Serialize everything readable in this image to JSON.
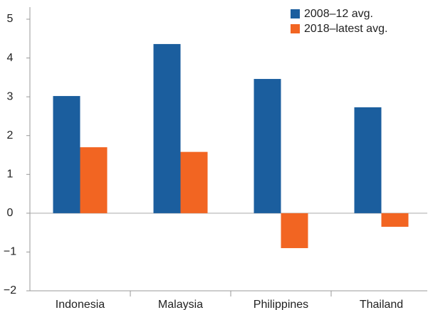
{
  "chart_data": {
    "type": "bar",
    "categories": [
      "Indonesia",
      "Malaysia",
      "Philippines",
      "Thailand"
    ],
    "series": [
      {
        "name": "2008–12 avg.",
        "color": "#1b5e9e",
        "values": [
          3.02,
          4.36,
          3.46,
          2.73
        ]
      },
      {
        "name": "2018–latest avg.",
        "color": "#f26522",
        "values": [
          1.7,
          1.58,
          -0.9,
          -0.35
        ]
      }
    ],
    "ylim": [
      -2,
      5
    ],
    "yticks": [
      {
        "value": -2,
        "label": "−2"
      },
      {
        "value": -1,
        "label": "−1"
      },
      0,
      1,
      2,
      3,
      4,
      5
    ],
    "legend": "top-right"
  }
}
